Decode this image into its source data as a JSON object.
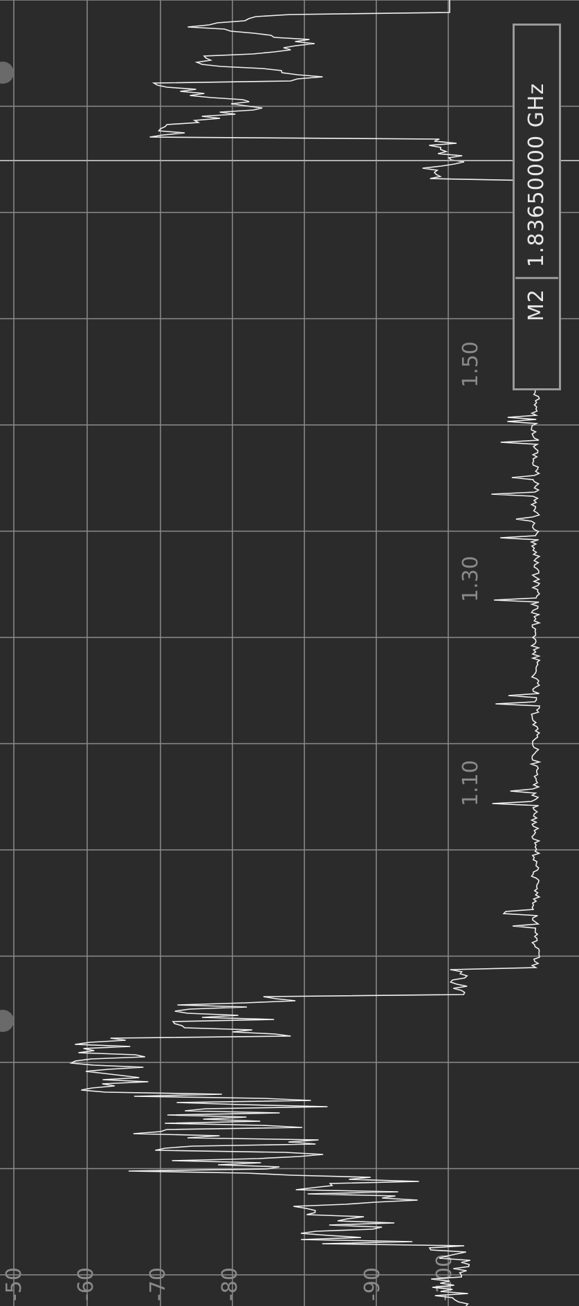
{
  "marker": {
    "label": "M2",
    "frequency": "1.83650000 GHz"
  },
  "freq_ticks": [
    "1.50",
    "1.30",
    "1.10"
  ],
  "level_ticks": [
    "-50",
    "-60",
    "-70",
    "-80",
    "-90",
    "-100"
  ],
  "colors": {
    "background": "#2b2b2b",
    "grid": "#8c8c8c",
    "trace": "#f2f2f2",
    "readout_border": "#9a9a9a"
  }
}
